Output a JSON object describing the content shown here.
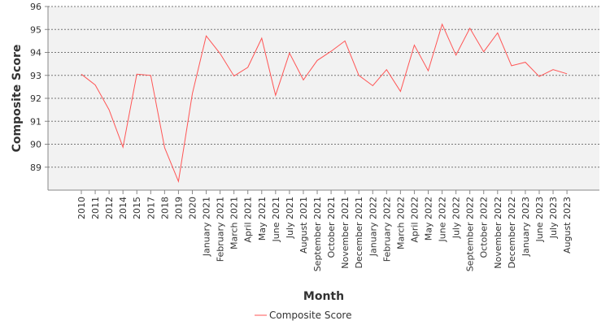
{
  "chart_data": {
    "type": "line",
    "title": "",
    "xlabel": "Month",
    "ylabel": "Composite Score",
    "ylim": [
      88,
      96
    ],
    "yticks": [
      89,
      90,
      91,
      92,
      93,
      94,
      95,
      96
    ],
    "grid": true,
    "legend_position": "bottom-center",
    "categories": [
      "2010",
      "2011",
      "2012",
      "2014",
      "2015",
      "2017",
      "2018",
      "2019",
      "2020",
      "January 2021",
      "February 2021",
      "March 2021",
      "April 2021",
      "May 2021",
      "June 2021",
      "July 2021",
      "August 2021",
      "September 2021",
      "October 2021",
      "November 2021",
      "December 2021",
      "January 2022",
      "February 2022",
      "March 2022",
      "April 2022",
      "May 2022",
      "June 2022",
      "July 2022",
      "September 2022",
      "October 2022",
      "November 2022",
      "December 2022",
      "January 2023",
      "June 2023",
      "July 2023",
      "August 2023"
    ],
    "series": [
      {
        "name": "Composite Score",
        "color": "#ff5555",
        "values": [
          93.05,
          92.58,
          91.5,
          89.87,
          93.05,
          93.0,
          89.85,
          88.38,
          92.2,
          94.72,
          93.95,
          92.97,
          93.35,
          94.62,
          92.13,
          93.97,
          92.8,
          93.65,
          94.05,
          94.5,
          93.0,
          92.55,
          93.25,
          92.3,
          94.32,
          93.2,
          95.23,
          93.88,
          95.05,
          94.03,
          94.85,
          93.42,
          93.57,
          92.95,
          93.25,
          93.07
        ]
      }
    ]
  }
}
